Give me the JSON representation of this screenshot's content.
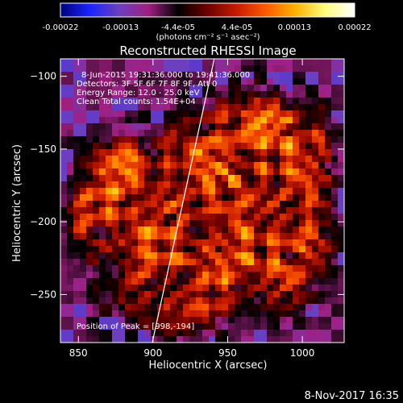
{
  "chart_data": {
    "type": "heatmap",
    "title": "Reconstructed RHESSI Image",
    "xlabel": "Heliocentric X (arcsec)",
    "ylabel": "Heliocentric Y (arcsec)",
    "xlim": [
      838,
      1028
    ],
    "ylim": [
      -283,
      -88
    ],
    "x_ticks": [
      850,
      900,
      950,
      1000
    ],
    "y_ticks": [
      -100,
      -150,
      -200,
      -250
    ],
    "x_tick_labels": [
      "850",
      "900",
      "950",
      "1000"
    ],
    "y_tick_labels": [
      "−100",
      "−150",
      "−200",
      "−250"
    ],
    "colorbar": {
      "ticks": [
        -0.00022,
        -0.00013,
        -4.4e-05,
        4.4e-05,
        0.00013,
        0.00022
      ],
      "tick_labels": [
        "-0.00022",
        "-0.00013",
        "-4.4e-05",
        "4.4e-05",
        "0.00013",
        "0.00022"
      ],
      "unit_label": "(photons cm⁻² s⁻¹ asec⁻²)",
      "range": [
        -0.00022,
        0.00022
      ],
      "colormap": [
        "#00007a",
        "#1a24ff",
        "#6b3fbf",
        "#a01f80",
        "#000000",
        "#6d0000",
        "#c81b00",
        "#ff5a00",
        "#ffb300",
        "#ffff80",
        "#ffffff"
      ]
    },
    "annotations": [
      "8-Jun-2015 19:31:36.000 to 19:41:36.000",
      "Detectors: 3F 5F 6F 7F 8F 9F, Att 0",
      "Energy Range: 12.0 - 25.0 keV",
      "Clean     Total counts: 1.54E+04"
    ],
    "peak_label": "Position of Peak = [998,-194]",
    "limb_line": {
      "x": [
        899.5,
        941
      ],
      "y": [
        -283,
        -88
      ]
    },
    "grid": false
  },
  "footer": {
    "date": "8-Nov-2017 16:35"
  }
}
